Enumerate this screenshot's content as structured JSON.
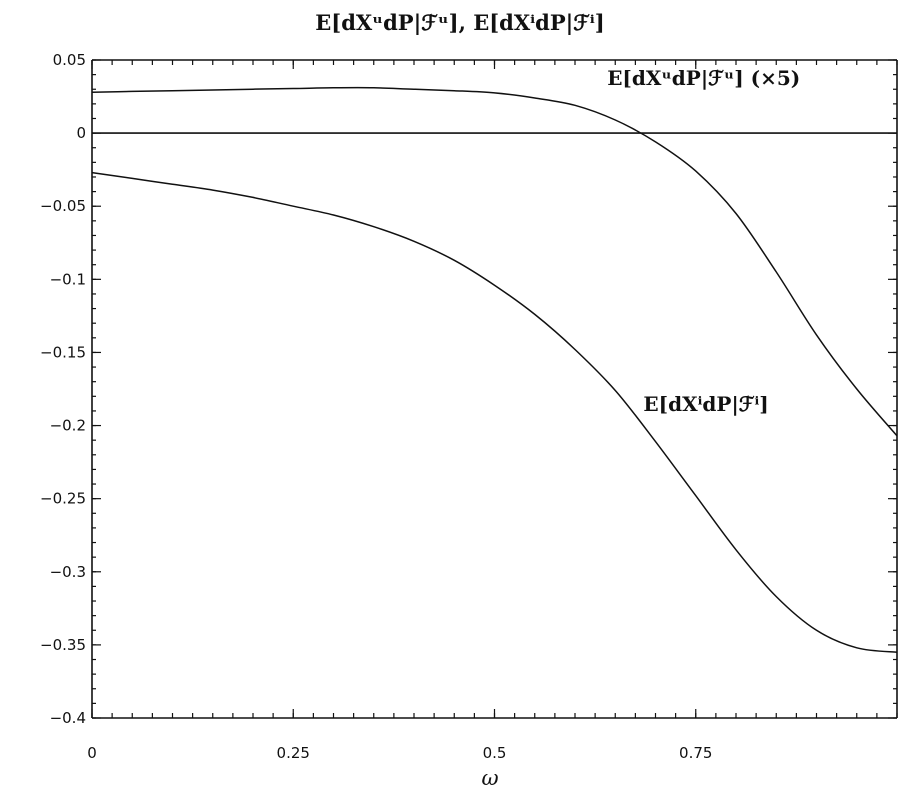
{
  "chart_data": {
    "type": "line",
    "title": "E[dXᵘdP|ℱᵘ],  E[dXⁱdP|ℱⁱ]",
    "xlabel": "ω",
    "ylabel": "",
    "xlim": [
      0,
      1
    ],
    "ylim": [
      -0.4,
      0.05
    ],
    "x_ticks": [
      "0",
      "0.25",
      "0.5",
      "0.75"
    ],
    "y_ticks": [
      "0.05",
      "0",
      "-0.05",
      "-0.1",
      "-0.15",
      "-0.2",
      "-0.25",
      "-0.3",
      "-0.35",
      "-0.4"
    ],
    "grid": false,
    "zero_line": true,
    "series": [
      {
        "name": "E[dXᵘdP|ℱᵘ] (×5)",
        "x": [
          0,
          0.05,
          0.1,
          0.15,
          0.2,
          0.25,
          0.3,
          0.35,
          0.4,
          0.45,
          0.5,
          0.55,
          0.6,
          0.65,
          0.7,
          0.75,
          0.8,
          0.85,
          0.9,
          0.95,
          1.0
        ],
        "values": [
          0.028,
          0.0285,
          0.029,
          0.0295,
          0.03,
          0.0305,
          0.031,
          0.031,
          0.03,
          0.029,
          0.0275,
          0.024,
          0.019,
          0.009,
          -0.006,
          -0.026,
          -0.055,
          -0.095,
          -0.138,
          -0.175,
          -0.207
        ]
      },
      {
        "name": "E[dXⁱdP|ℱⁱ]",
        "x": [
          0,
          0.05,
          0.1,
          0.15,
          0.2,
          0.25,
          0.3,
          0.35,
          0.4,
          0.45,
          0.5,
          0.55,
          0.6,
          0.65,
          0.7,
          0.75,
          0.8,
          0.85,
          0.9,
          0.95,
          1.0
        ],
        "values": [
          -0.027,
          -0.031,
          -0.035,
          -0.039,
          -0.044,
          -0.05,
          -0.056,
          -0.064,
          -0.074,
          -0.087,
          -0.104,
          -0.124,
          -0.148,
          -0.176,
          -0.211,
          -0.248,
          -0.285,
          -0.317,
          -0.34,
          -0.352,
          -0.355
        ]
      }
    ],
    "annotations": [
      {
        "series": 0,
        "text": "E[dXᵘdP|ℱᵘ] (×5)",
        "x": 0.64,
        "y": 0.033
      },
      {
        "series": 1,
        "text": "E[dXⁱdP|ℱⁱ]",
        "x": 0.685,
        "y": -0.19
      }
    ]
  }
}
